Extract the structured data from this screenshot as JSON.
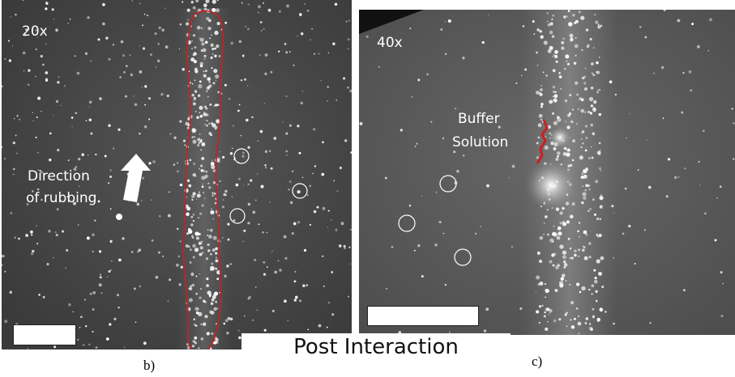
{
  "panel_b": {
    "magnification": "20x",
    "annotation_lines": [
      "Direction",
      "of rubbing"
    ],
    "caption": "b)"
  },
  "panel_c": {
    "magnification": "40x",
    "annotation_lines": [
      "Buffer",
      "Solution"
    ],
    "caption": "c)"
  },
  "center_label": "Post Interaction",
  "colors": {
    "outline_red": "#cc1f1f",
    "marker_white": "#ffffff"
  }
}
